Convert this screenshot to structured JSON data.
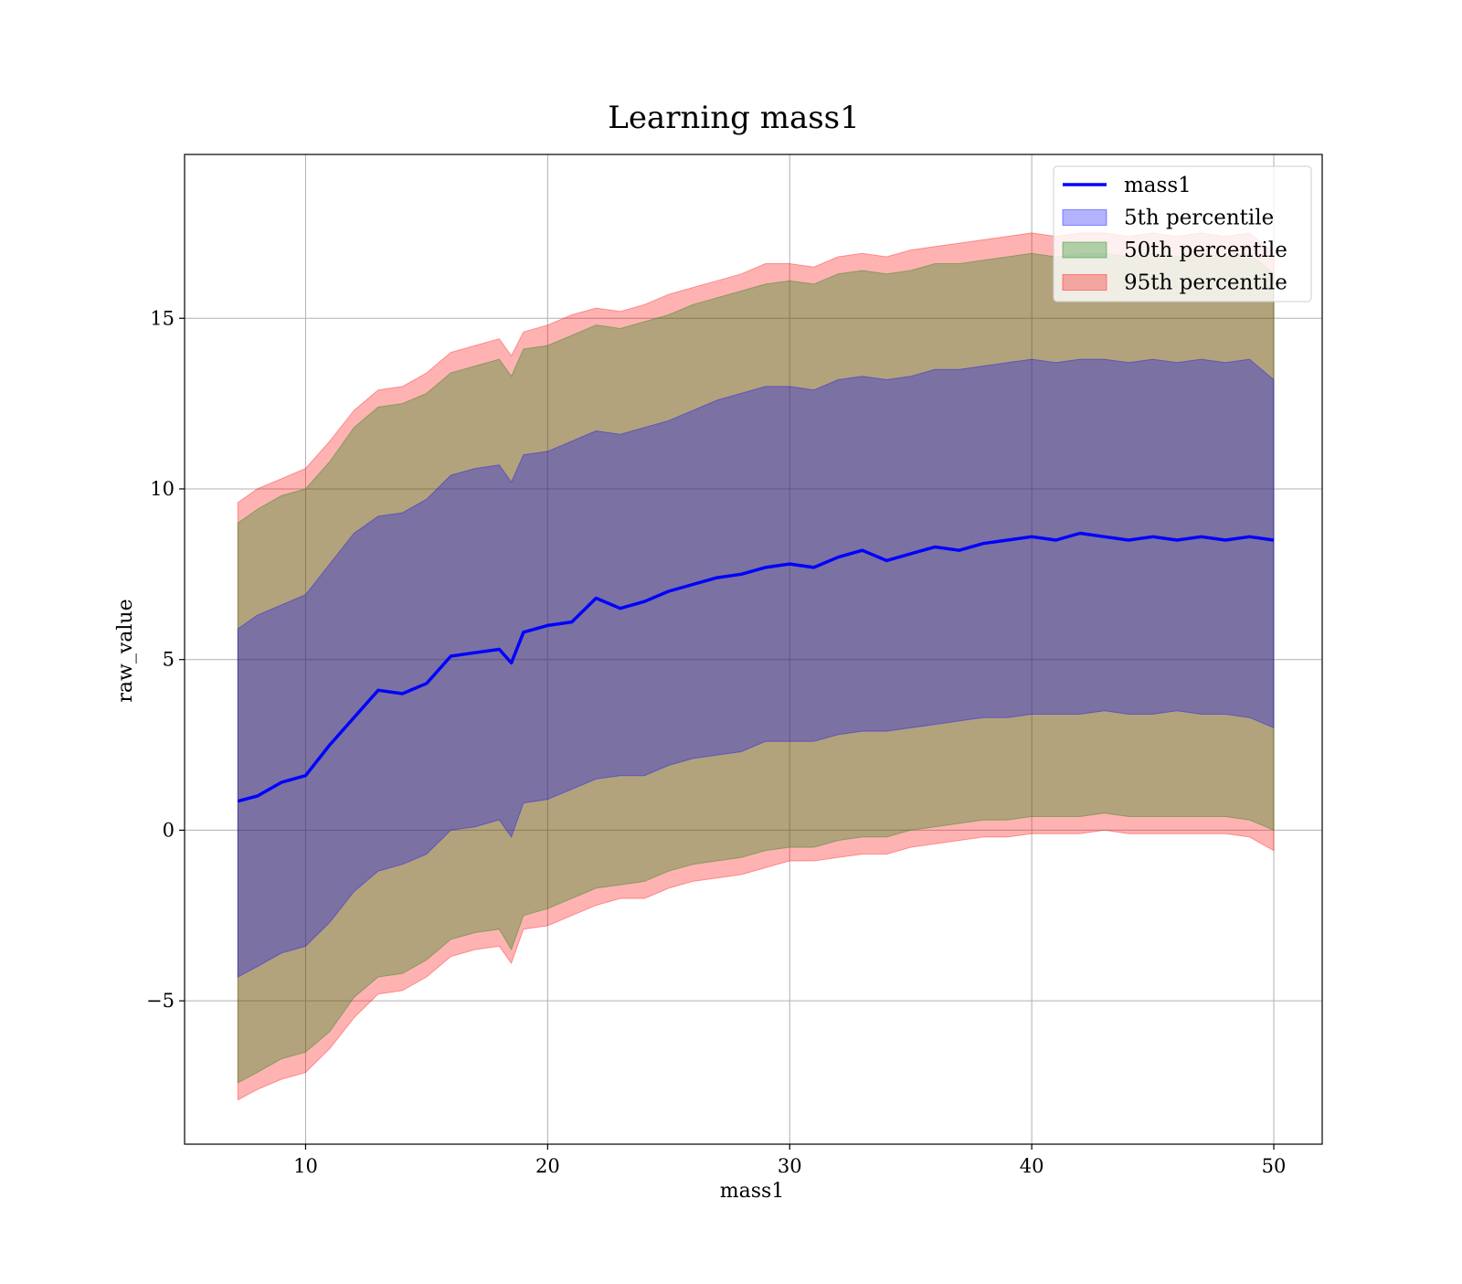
{
  "chart_data": {
    "type": "area",
    "title": "Learning mass1",
    "xlabel": "mass1",
    "ylabel": "raw_value",
    "xlim": [
      5.0,
      52.0
    ],
    "ylim": [
      -9.2,
      19.8
    ],
    "x_ticks": [
      10,
      20,
      30,
      40,
      50
    ],
    "x_tick_labels": [
      "10",
      "20",
      "30",
      "40",
      "50"
    ],
    "y_ticks": [
      -5,
      0,
      5,
      10,
      15
    ],
    "y_tick_labels": [
      "−5",
      "0",
      "5",
      "10",
      "15"
    ],
    "grid": true,
    "legend_position": "top-right",
    "x": [
      7.2,
      8,
      9,
      10,
      11,
      12,
      13,
      14,
      15,
      16,
      17,
      18,
      18.5,
      19,
      20,
      21,
      22,
      23,
      24,
      25,
      26,
      27,
      28,
      29,
      30,
      31,
      32,
      33,
      34,
      35,
      36,
      37,
      38,
      39,
      40,
      41,
      42,
      43,
      44,
      45,
      46,
      47,
      48,
      49,
      50
    ],
    "series": [
      {
        "name": "mass1",
        "kind": "line",
        "color": "#0000ff",
        "values": [
          0.85,
          1.0,
          1.4,
          1.6,
          2.5,
          3.3,
          4.1,
          4.0,
          4.3,
          5.1,
          5.2,
          5.3,
          4.9,
          5.8,
          6.0,
          6.1,
          6.8,
          6.5,
          6.7,
          7.0,
          7.2,
          7.4,
          7.5,
          7.7,
          7.8,
          7.7,
          8.0,
          8.2,
          7.9,
          8.1,
          8.3,
          8.2,
          8.4,
          8.5,
          8.6,
          8.5,
          8.7,
          8.6,
          8.5,
          8.6,
          8.5,
          8.6,
          8.5,
          8.6,
          8.5
        ]
      },
      {
        "name": "5th percentile",
        "kind": "band",
        "color": "#0000ff",
        "opacity": 0.3,
        "lower": [
          -4.3,
          -4.0,
          -3.6,
          -3.4,
          -2.7,
          -1.8,
          -1.2,
          -1.0,
          -0.7,
          0.0,
          0.1,
          0.3,
          -0.2,
          0.8,
          0.9,
          1.2,
          1.5,
          1.6,
          1.6,
          1.9,
          2.1,
          2.2,
          2.3,
          2.6,
          2.6,
          2.6,
          2.8,
          2.9,
          2.9,
          3.0,
          3.1,
          3.2,
          3.3,
          3.3,
          3.4,
          3.4,
          3.4,
          3.5,
          3.4,
          3.4,
          3.5,
          3.4,
          3.4,
          3.3,
          3.0
        ],
        "upper": [
          5.9,
          6.3,
          6.6,
          6.9,
          7.8,
          8.7,
          9.2,
          9.3,
          9.7,
          10.4,
          10.6,
          10.7,
          10.2,
          11.0,
          11.1,
          11.4,
          11.7,
          11.6,
          11.8,
          12.0,
          12.3,
          12.6,
          12.8,
          13.0,
          13.0,
          12.9,
          13.2,
          13.3,
          13.2,
          13.3,
          13.5,
          13.5,
          13.6,
          13.7,
          13.8,
          13.7,
          13.8,
          13.8,
          13.7,
          13.8,
          13.7,
          13.8,
          13.7,
          13.8,
          13.2
        ]
      },
      {
        "name": "50th percentile",
        "kind": "band",
        "color": "#008000",
        "opacity": 0.3,
        "lower": [
          -7.4,
          -7.1,
          -6.7,
          -6.5,
          -5.9,
          -4.9,
          -4.3,
          -4.2,
          -3.8,
          -3.2,
          -3.0,
          -2.9,
          -3.5,
          -2.5,
          -2.3,
          -2.0,
          -1.7,
          -1.6,
          -1.5,
          -1.2,
          -1.0,
          -0.9,
          -0.8,
          -0.6,
          -0.5,
          -0.5,
          -0.3,
          -0.2,
          -0.2,
          0.0,
          0.1,
          0.2,
          0.3,
          0.3,
          0.4,
          0.4,
          0.4,
          0.5,
          0.4,
          0.4,
          0.4,
          0.4,
          0.4,
          0.3,
          0.0
        ],
        "upper": [
          9.0,
          9.4,
          9.8,
          10.0,
          10.8,
          11.8,
          12.4,
          12.5,
          12.8,
          13.4,
          13.6,
          13.8,
          13.3,
          14.1,
          14.2,
          14.5,
          14.8,
          14.7,
          14.9,
          15.1,
          15.4,
          15.6,
          15.8,
          16.0,
          16.1,
          16.0,
          16.3,
          16.4,
          16.3,
          16.4,
          16.6,
          16.6,
          16.7,
          16.8,
          16.9,
          16.8,
          16.9,
          16.9,
          16.8,
          16.9,
          16.8,
          16.9,
          16.8,
          16.9,
          16.3
        ]
      },
      {
        "name": "95th percentile",
        "kind": "band",
        "color": "#ff0000",
        "opacity": 0.3,
        "lower": [
          -7.9,
          -7.6,
          -7.3,
          -7.1,
          -6.4,
          -5.5,
          -4.8,
          -4.7,
          -4.3,
          -3.7,
          -3.5,
          -3.4,
          -3.9,
          -2.9,
          -2.8,
          -2.5,
          -2.2,
          -2.0,
          -2.0,
          -1.7,
          -1.5,
          -1.4,
          -1.3,
          -1.1,
          -0.9,
          -0.9,
          -0.8,
          -0.7,
          -0.7,
          -0.5,
          -0.4,
          -0.3,
          -0.2,
          -0.2,
          -0.1,
          -0.1,
          -0.1,
          0.0,
          -0.1,
          -0.1,
          -0.1,
          -0.1,
          -0.1,
          -0.2,
          -0.6
        ],
        "upper": [
          9.6,
          10.0,
          10.3,
          10.6,
          11.4,
          12.3,
          12.9,
          13.0,
          13.4,
          14.0,
          14.2,
          14.4,
          13.9,
          14.6,
          14.8,
          15.1,
          15.3,
          15.2,
          15.4,
          15.7,
          15.9,
          16.1,
          16.3,
          16.6,
          16.6,
          16.5,
          16.8,
          16.9,
          16.8,
          17.0,
          17.1,
          17.2,
          17.3,
          17.4,
          17.5,
          17.4,
          17.5,
          17.5,
          17.4,
          17.5,
          17.4,
          17.5,
          17.4,
          17.5,
          16.9
        ]
      }
    ]
  }
}
